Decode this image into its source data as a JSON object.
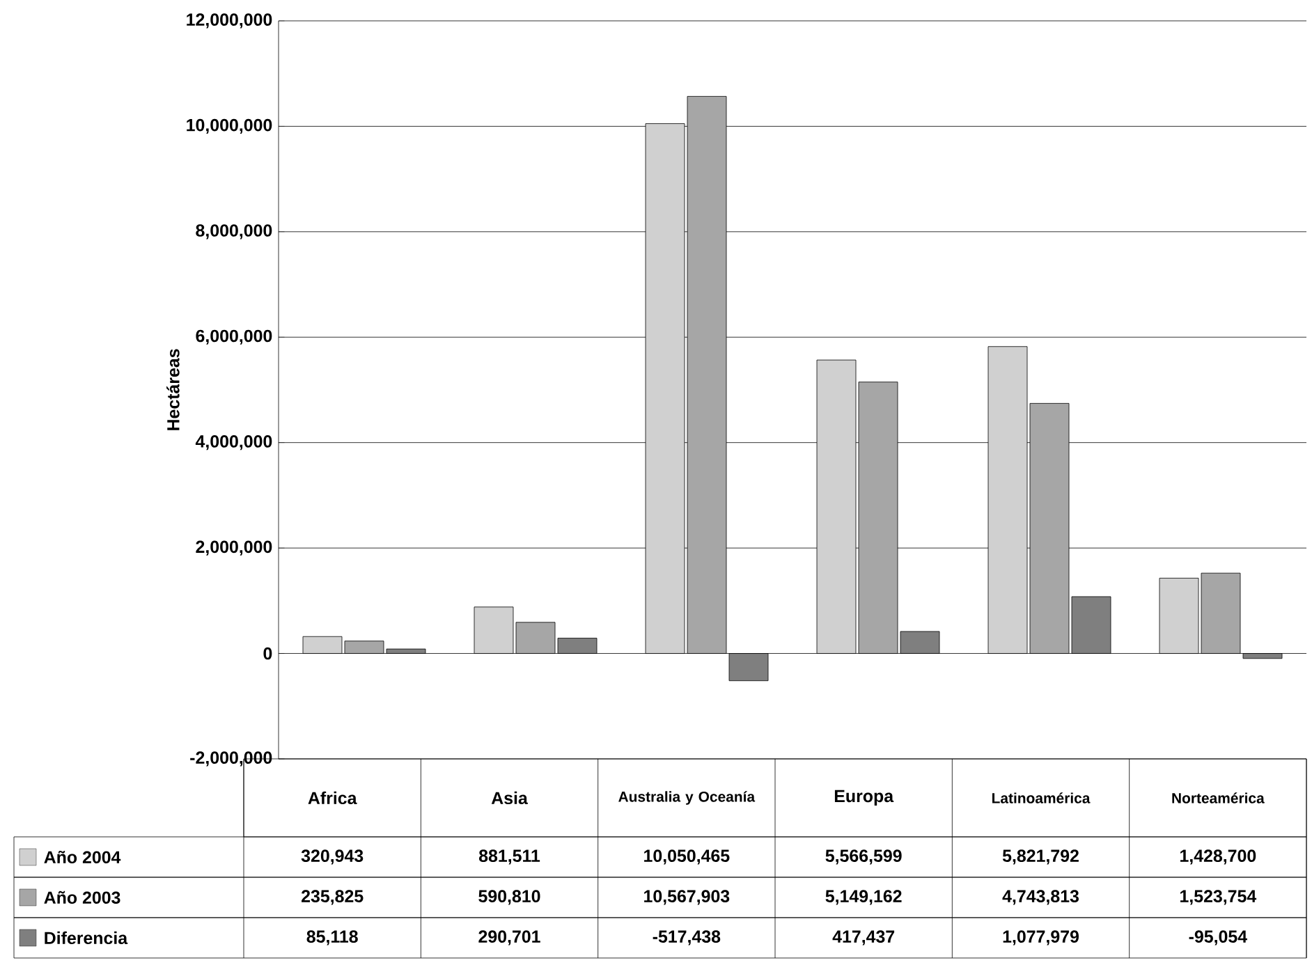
{
  "chart_data": {
    "type": "bar",
    "ylabel": "Hectáreas",
    "categories": [
      "Africa",
      "Asia",
      "Australia y Oceanía",
      "Europa",
      "Latinoamérica",
      "Norteamérica"
    ],
    "series": [
      {
        "name": "Año 2004",
        "color": "#d0d0d0",
        "values": [
          320943,
          881511,
          10050465,
          5566599,
          5821792,
          1428700
        ],
        "value_labels": [
          "320,943",
          "881,511",
          "10,050,465",
          "5,566,599",
          "5,821,792",
          "1,428,700"
        ]
      },
      {
        "name": "Año 2003",
        "color": "#a6a6a6",
        "values": [
          235825,
          590810,
          10567903,
          5149162,
          4743813,
          1523754
        ],
        "value_labels": [
          "235,825",
          "590,810",
          "10,567,903",
          "5,149,162",
          "4,743,813",
          "1,523,754"
        ]
      },
      {
        "name": "Diferencia",
        "color": "#7f7f7f",
        "values": [
          85118,
          290701,
          -517438,
          417437,
          1077979,
          -95054
        ],
        "value_labels": [
          "85,118",
          "290,701",
          "-517,438",
          "417,437",
          "1,077,979",
          "-95,054"
        ]
      }
    ],
    "ylim": [
      -2000000,
      12000000
    ],
    "yticks": [
      {
        "value": -2000000,
        "label": "-2,000,000"
      },
      {
        "value": 0,
        "label": "0"
      },
      {
        "value": 2000000,
        "label": "2,000,000"
      },
      {
        "value": 4000000,
        "label": "4,000,000"
      },
      {
        "value": 6000000,
        "label": "6,000,000"
      },
      {
        "value": 8000000,
        "label": "8,000,000"
      },
      {
        "value": 10000000,
        "label": "10,000,000"
      },
      {
        "value": 12000000,
        "label": "12,000,000"
      }
    ],
    "grid": "y",
    "legend": "bottom"
  }
}
